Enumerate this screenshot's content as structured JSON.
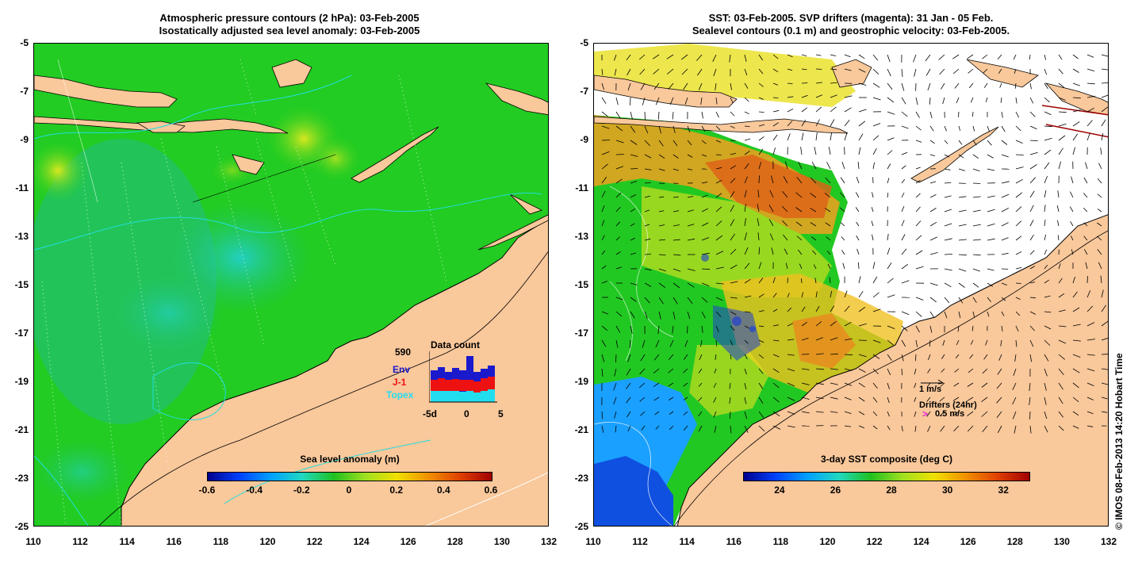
{
  "left_panel": {
    "title_line1": "Atmospheric pressure contours (2 hPa): 03-Feb-2005",
    "title_line2": "Isostatically adjusted sea level anomaly: 03-Feb-2005",
    "colorbar_title": "Sea level anomaly (m)",
    "colorbar_ticks": [
      "-0.6",
      "-0.4",
      "-0.2",
      "0",
      "0.2",
      "0.4",
      "0.6"
    ],
    "colorbar_range": [
      -0.6,
      0.6
    ],
    "inset": {
      "title": "Data count",
      "max_label": "590",
      "series": [
        {
          "name": "Env",
          "color": "#1a1acc"
        },
        {
          "name": "J-1",
          "color": "#ee1111"
        },
        {
          "name": "Topex",
          "color": "#22ddee"
        }
      ],
      "x_ticks": [
        "-5d",
        "0",
        "5"
      ]
    }
  },
  "right_panel": {
    "title_line1": "SST: 03-Feb-2005. SVP drifters (magenta): 31 Jan - 05 Feb.",
    "title_line2": "Sealevel contours (0.1 m) and geostrophic velocity: 03-Feb-2005.",
    "colorbar_title": "3-day SST composite (deg C)",
    "colorbar_ticks": [
      "24",
      "26",
      "28",
      "30",
      "32"
    ],
    "colorbar_range": [
      22.7,
      32.9
    ],
    "legend": {
      "velocity_scale": "1 m/s",
      "drifters_title": "Drifters (24hr)",
      "drifters_scale": "0.5 m/s",
      "drifters_marker": ">"
    }
  },
  "axes": {
    "y_ticks": [
      "-5",
      "-7",
      "-9",
      "-11",
      "-13",
      "-15",
      "-17",
      "-19",
      "-21",
      "-23",
      "-25"
    ],
    "x_ticks": [
      "110",
      "112",
      "114",
      "116",
      "118",
      "120",
      "122",
      "124",
      "126",
      "128",
      "130",
      "132"
    ],
    "lat_range": [
      -25,
      -5
    ],
    "lon_range": [
      110,
      132
    ]
  },
  "copyright": "© IMOS 08-Feb-2013 14:20 Hobart Time",
  "colors": {
    "land": "#f9c89b",
    "ocean_green": "#22cc22",
    "sst_yellow": "#e8e020",
    "sst_orange": "#f09020",
    "sst_blue": "#2080ff"
  }
}
